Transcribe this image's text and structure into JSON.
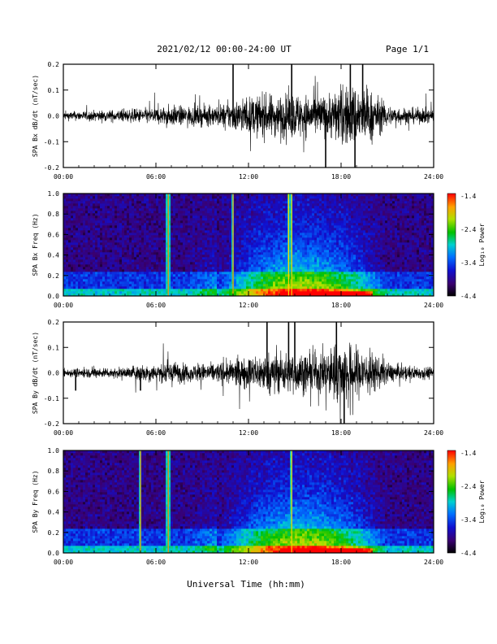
{
  "header": {
    "title": "2021/02/12  00:00-24:00 UT",
    "page": "Page 1/1"
  },
  "colorbar": {
    "label": "Log₁₀ Power",
    "ticks": [
      "-1.4",
      "-2.4",
      "-3.4",
      "-4.4"
    ]
  },
  "time_ticks": [
    "00:00",
    "06:00",
    "12:00",
    "18:00",
    "24:00"
  ],
  "xlabel": "Universal Time (hh:mm)",
  "chart_data": [
    {
      "type": "line",
      "ylabel": "SPA Bx dB/dt (nT/sec)",
      "x_range_hours": [
        0,
        24
      ],
      "ylim": [
        -0.2,
        0.2
      ],
      "yticks": [
        "0.2",
        "0.1",
        "0.0",
        "-0.1",
        "-0.2"
      ],
      "envelope": {
        "hours": [
          0,
          2,
          4,
          5,
          6,
          7,
          8,
          10,
          11,
          12,
          13,
          14,
          15,
          16,
          17,
          18,
          19,
          20,
          21,
          22,
          24
        ],
        "amplitude": [
          0.02,
          0.025,
          0.03,
          0.035,
          0.04,
          0.05,
          0.045,
          0.05,
          0.07,
          0.09,
          0.1,
          0.1,
          0.11,
          0.1,
          0.1,
          0.14,
          0.15,
          0.12,
          0.05,
          0.04,
          0.035
        ]
      },
      "spikes": [
        {
          "hour": 11.0,
          "value": 0.2
        },
        {
          "hour": 14.8,
          "value": 0.2
        },
        {
          "hour": 17.0,
          "value": -0.2
        },
        {
          "hour": 18.6,
          "value": 0.2
        },
        {
          "hour": 18.9,
          "value": -0.2
        },
        {
          "hour": 19.4,
          "value": 0.2
        }
      ]
    },
    {
      "type": "heatmap",
      "ylabel": "SPA Bx Freq (Hz)",
      "x_range_hours": [
        0,
        24
      ],
      "ylim": [
        0.0,
        1.0
      ],
      "yticks": [
        "1.0",
        "0.8",
        "0.6",
        "0.4",
        "0.2",
        "0.0"
      ],
      "zlim": [
        -4.4,
        -1.4
      ],
      "vertical_lines_hours": [
        6.8,
        11.0,
        14.6,
        14.8
      ],
      "active_hours": [
        10,
        21
      ]
    },
    {
      "type": "line",
      "ylabel": "SPA By dB/dt (nT/sec)",
      "x_range_hours": [
        0,
        24
      ],
      "ylim": [
        -0.2,
        0.2
      ],
      "yticks": [
        "0.2",
        "0.1",
        "0.0",
        "-0.1",
        "-0.2"
      ],
      "envelope": {
        "hours": [
          0,
          2,
          4,
          5,
          6,
          7,
          8,
          10,
          11,
          12,
          13,
          14,
          15,
          16,
          17,
          18,
          19,
          20,
          21,
          22,
          24
        ],
        "amplitude": [
          0.02,
          0.025,
          0.025,
          0.045,
          0.04,
          0.06,
          0.04,
          0.05,
          0.06,
          0.08,
          0.09,
          0.1,
          0.1,
          0.09,
          0.11,
          0.15,
          0.13,
          0.1,
          0.05,
          0.035,
          0.03
        ]
      },
      "spikes": [
        {
          "hour": 0.8,
          "value": -0.07
        },
        {
          "hour": 5.0,
          "value": -0.07
        },
        {
          "hour": 13.2,
          "value": 0.2
        },
        {
          "hour": 14.6,
          "value": 0.2
        },
        {
          "hour": 15.0,
          "value": 0.2
        },
        {
          "hour": 17.7,
          "value": 0.2
        },
        {
          "hour": 18.2,
          "value": -0.2
        }
      ]
    },
    {
      "type": "heatmap",
      "ylabel": "SPA By Freq (Hz)",
      "x_range_hours": [
        0,
        24
      ],
      "ylim": [
        0.0,
        1.0
      ],
      "yticks": [
        "1.0",
        "0.8",
        "0.6",
        "0.4",
        "0.2",
        "0.0"
      ],
      "zlim": [
        -4.4,
        -1.4
      ],
      "vertical_lines_hours": [
        5.0,
        6.8,
        14.8
      ],
      "active_hours": [
        10,
        21
      ]
    }
  ]
}
